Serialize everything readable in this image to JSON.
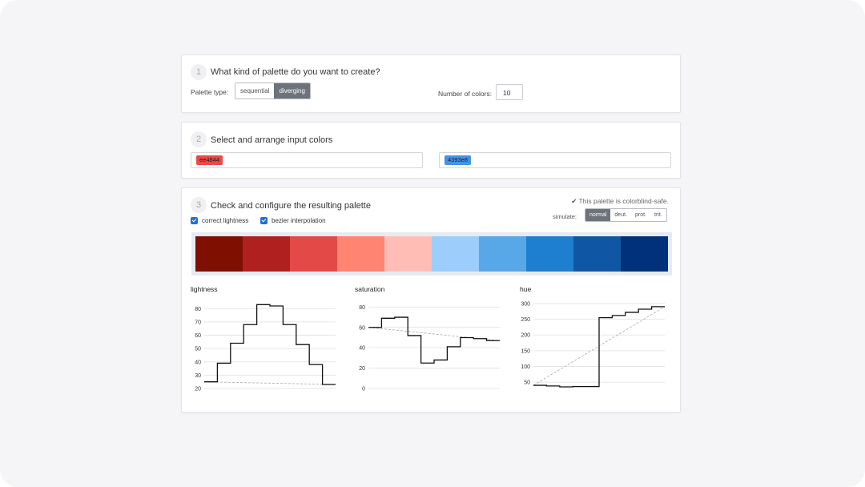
{
  "step1": {
    "number": "1",
    "title": "What kind of palette do you want to create?",
    "palette_type_label": "Palette type:",
    "palette_types": [
      {
        "label": "sequential",
        "active": false
      },
      {
        "label": "diverging",
        "active": true
      }
    ],
    "num_colors_label": "Number of colors:",
    "num_colors_value": "10"
  },
  "step2": {
    "number": "2",
    "title": "Select and arrange input colors",
    "left_colors": [
      {
        "hex": "ee4844",
        "color": "#ee4844"
      }
    ],
    "right_colors": [
      {
        "hex": "4393e8",
        "color": "#4393e8"
      }
    ]
  },
  "step3": {
    "number": "3",
    "title": "Check and configure the resulting palette",
    "colorblind_safe_text": "This palette is colorblind-safe.",
    "simulate_label": "simulate:",
    "simulate_options": [
      {
        "label": "normal",
        "active": true
      },
      {
        "label": "deut.",
        "active": false
      },
      {
        "label": "prot.",
        "active": false
      },
      {
        "label": "trit.",
        "active": false
      }
    ],
    "options": [
      {
        "label": "correct lightness",
        "checked": true
      },
      {
        "label": "bezier interpolation",
        "checked": true
      }
    ],
    "palette": [
      "#7f0f00",
      "#b0201f",
      "#e34946",
      "#ff8472",
      "#ffbdb5",
      "#9ccdfb",
      "#58a7e7",
      "#1e7ed0",
      "#0f57a4",
      "#00317a"
    ]
  },
  "chart_data": [
    {
      "type": "line",
      "title": "lightness",
      "ylim": [
        20,
        85
      ],
      "yticks": [
        20,
        30,
        40,
        50,
        60,
        70,
        80
      ],
      "step_values": [
        25,
        39,
        54,
        68,
        83,
        82,
        68,
        53,
        38,
        23
      ],
      "reference_line": [
        25,
        23
      ]
    },
    {
      "type": "line",
      "title": "saturation",
      "ylim": [
        0,
        85
      ],
      "yticks": [
        0,
        20,
        40,
        60,
        80
      ],
      "step_values": [
        60,
        69,
        70,
        52,
        25,
        28,
        41,
        50,
        49,
        47
      ],
      "reference_line": [
        60,
        47
      ]
    },
    {
      "type": "line",
      "title": "hue",
      "ylim": [
        30,
        305
      ],
      "yticks": [
        50,
        100,
        150,
        200,
        250,
        300
      ],
      "step_values": [
        40,
        38,
        35,
        36,
        36,
        255,
        262,
        272,
        282,
        290
      ],
      "reference_line": [
        40,
        290
      ]
    }
  ]
}
